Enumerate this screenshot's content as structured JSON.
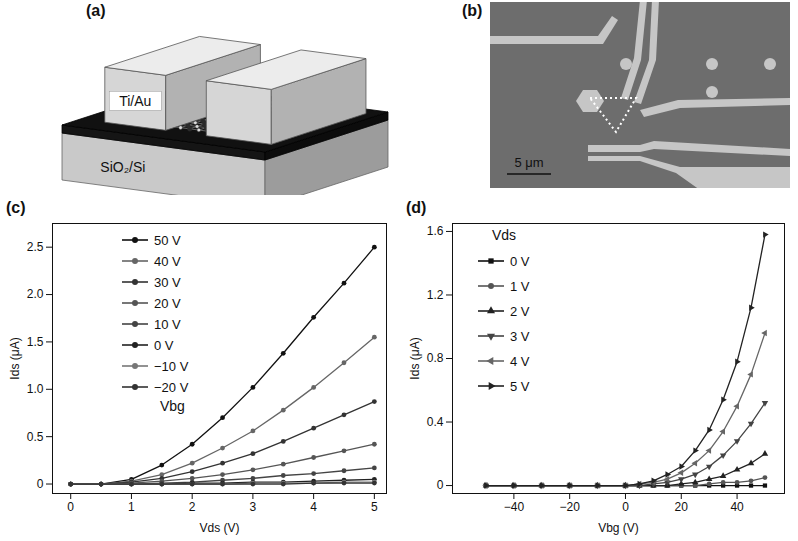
{
  "chart_data": [
    {
      "type": "line",
      "title": "(c)",
      "xlabel": "Vds (V)",
      "ylabel": "Ids (μA)",
      "xlim": [
        -0.3,
        5.2
      ],
      "ylim": [
        -0.1,
        2.75
      ],
      "xticks": [
        0,
        1,
        2,
        3,
        4,
        5
      ],
      "yticks": [
        0,
        0.5,
        {
          "value": 1,
          "label": "1.0"
        },
        1.5,
        {
          "value": 2,
          "label": "2.0"
        },
        2.5
      ],
      "legend": "upper left",
      "legend_title": "Vbg",
      "x": [
        0,
        0.5,
        1,
        1.5,
        2,
        2.5,
        3,
        3.5,
        4,
        4.5,
        5
      ],
      "series": [
        {
          "name": "50 V",
          "color": "#111111",
          "marker": "circle",
          "values": [
            0,
            0,
            0.05,
            0.2,
            0.42,
            0.7,
            1.02,
            1.38,
            1.76,
            2.12,
            2.5
          ]
        },
        {
          "name": "40 V",
          "color": "#666666",
          "marker": "circle",
          "values": [
            0,
            0,
            0.03,
            0.1,
            0.22,
            0.38,
            0.56,
            0.78,
            1.02,
            1.28,
            1.55
          ]
        },
        {
          "name": "30 V",
          "color": "#333333",
          "marker": "circle",
          "values": [
            0,
            0,
            0.02,
            0.06,
            0.13,
            0.22,
            0.32,
            0.45,
            0.59,
            0.73,
            0.87
          ]
        },
        {
          "name": "20 V",
          "color": "#555555",
          "marker": "circle",
          "values": [
            0,
            0,
            0.01,
            0.03,
            0.06,
            0.1,
            0.15,
            0.21,
            0.28,
            0.35,
            0.42
          ]
        },
        {
          "name": "10 V",
          "color": "#444444",
          "marker": "circle",
          "values": [
            0,
            0,
            0,
            0.01,
            0.02,
            0.04,
            0.06,
            0.09,
            0.11,
            0.14,
            0.17
          ]
        },
        {
          "name": "0 V",
          "color": "#222222",
          "marker": "circle",
          "values": [
            0,
            0,
            0,
            0,
            0.01,
            0.01,
            0.02,
            0.02,
            0.03,
            0.04,
            0.05
          ]
        },
        {
          "name": "−10 V",
          "color": "#777777",
          "marker": "circle",
          "values": [
            0,
            0,
            0,
            0,
            0,
            0,
            0.01,
            0.01,
            0.01,
            0.02,
            0.02
          ]
        },
        {
          "name": "−20 V",
          "color": "#333333",
          "marker": "circle",
          "values": [
            0,
            0,
            0,
            0,
            0,
            0,
            0,
            0,
            0.01,
            0.01,
            0.01
          ]
        }
      ]
    },
    {
      "type": "line",
      "title": "(d)",
      "xlabel": "Vbg (V)",
      "ylabel": "Ids (μA)",
      "xlim": [
        -62,
        57
      ],
      "ylim": [
        -0.05,
        1.65
      ],
      "xticks": [
        {
          "value": -40,
          "label": "−40"
        },
        {
          "value": -20,
          "label": "−20"
        },
        0,
        20,
        40
      ],
      "yticks": [
        0,
        0.4,
        0.8,
        1.2,
        1.6
      ],
      "legend": "upper left",
      "legend_title": "Vds",
      "x": [
        -50,
        -40,
        -30,
        -20,
        -10,
        0,
        5,
        10,
        15,
        20,
        25,
        30,
        35,
        40,
        45,
        50
      ],
      "series": [
        {
          "name": "0 V",
          "color": "#111111",
          "marker": "square",
          "values": [
            0,
            0,
            0,
            0,
            0,
            0,
            0,
            0,
            0,
            0,
            0,
            0,
            0,
            0,
            0,
            0
          ]
        },
        {
          "name": "1 V",
          "color": "#555555",
          "marker": "circle",
          "values": [
            0,
            0,
            0,
            0,
            0,
            0,
            0,
            0,
            0,
            0,
            0,
            0.01,
            0.02,
            0.02,
            0.03,
            0.05
          ]
        },
        {
          "name": "2 V",
          "color": "#222222",
          "marker": "triangle-up",
          "values": [
            0,
            0,
            0,
            0,
            0,
            0,
            0,
            0,
            0,
            0.01,
            0.02,
            0.04,
            0.06,
            0.1,
            0.14,
            0.2
          ]
        },
        {
          "name": "3 V",
          "color": "#444444",
          "marker": "triangle-down",
          "values": [
            0,
            0,
            0,
            0,
            0,
            0,
            0,
            0.01,
            0.02,
            0.04,
            0.07,
            0.12,
            0.19,
            0.28,
            0.39,
            0.52
          ]
        },
        {
          "name": "4 V",
          "color": "#666666",
          "marker": "triangle-left",
          "values": [
            0,
            0,
            0,
            0,
            0,
            0,
            0.01,
            0.02,
            0.04,
            0.08,
            0.14,
            0.22,
            0.34,
            0.5,
            0.7,
            0.96
          ]
        },
        {
          "name": "5 V",
          "color": "#222222",
          "marker": "triangle-right",
          "values": [
            0,
            0,
            0,
            0,
            0,
            0,
            0.01,
            0.03,
            0.07,
            0.12,
            0.22,
            0.35,
            0.54,
            0.78,
            1.12,
            1.58
          ]
        }
      ]
    }
  ],
  "schematic": {
    "label": "(a)",
    "electrode": "Ti/Au",
    "substrate": "SiO₂/Si"
  },
  "micrograph": {
    "label": "(b)",
    "scale_bar": "5 μm"
  }
}
